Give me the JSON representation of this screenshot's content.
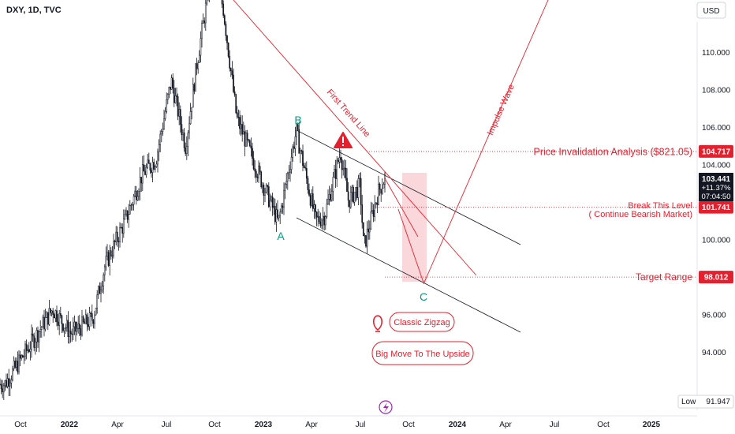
{
  "header": {
    "symbol_title": "DXY, 1D, TVC",
    "currency_button": "USD"
  },
  "chart_data": {
    "type": "candlestick",
    "title": "DXY, 1D, TVC",
    "ylim": [
      90.9,
      112.8
    ],
    "y_ticks": [
      "110.000",
      "108.000",
      "106.000",
      "104.000",
      "102.000",
      "100.000",
      "98.000",
      "96.000",
      "94.000"
    ],
    "x_ticks": [
      {
        "label": "Oct",
        "bold": false
      },
      {
        "label": "2022",
        "bold": true
      },
      {
        "label": "Apr",
        "bold": false
      },
      {
        "label": "Jul",
        "bold": false
      },
      {
        "label": "Oct",
        "bold": false
      },
      {
        "label": "2023",
        "bold": true
      },
      {
        "label": "Apr",
        "bold": false
      },
      {
        "label": "Jul",
        "bold": false
      },
      {
        "label": "Oct",
        "bold": false
      },
      {
        "label": "2024",
        "bold": true
      },
      {
        "label": "Apr",
        "bold": false
      },
      {
        "label": "Jul",
        "bold": false
      },
      {
        "label": "Oct",
        "bold": false
      },
      {
        "label": "2025",
        "bold": true
      }
    ],
    "price_path": [
      {
        "date": "2021-09-01",
        "value": 92.3
      },
      {
        "date": "2021-10-15",
        "value": 94.2
      },
      {
        "date": "2021-12-01",
        "value": 96.3
      },
      {
        "date": "2022-01-05",
        "value": 95.0
      },
      {
        "date": "2022-02-15",
        "value": 95.8
      },
      {
        "date": "2022-03-10",
        "value": 98.6
      },
      {
        "date": "2022-04-20",
        "value": 101.2
      },
      {
        "date": "2022-05-20",
        "value": 103.5
      },
      {
        "date": "2022-06-15",
        "value": 104.3
      },
      {
        "date": "2022-07-14",
        "value": 108.5
      },
      {
        "date": "2022-08-10",
        "value": 105.0
      },
      {
        "date": "2022-09-01",
        "value": 109.5
      },
      {
        "date": "2022-09-27",
        "value": 114.1
      },
      {
        "date": "2022-10-20",
        "value": 112.5
      },
      {
        "date": "2022-11-15",
        "value": 106.5
      },
      {
        "date": "2022-12-20",
        "value": 104.0
      },
      {
        "date": "2023-01-25",
        "value": 101.5
      },
      {
        "date": "2023-02-02",
        "value": 100.9
      },
      {
        "date": "2023-03-08",
        "value": 105.8
      },
      {
        "date": "2023-04-14",
        "value": 101.0
      },
      {
        "date": "2023-05-01",
        "value": 101.3
      },
      {
        "date": "2023-05-31",
        "value": 104.7
      },
      {
        "date": "2023-06-15",
        "value": 102.1
      },
      {
        "date": "2023-07-07",
        "value": 102.9
      },
      {
        "date": "2023-07-14",
        "value": 99.6
      },
      {
        "date": "2023-08-10",
        "value": 102.5
      },
      {
        "date": "2023-08-25",
        "value": 103.44
      }
    ],
    "last_price": {
      "value": "103.441",
      "change": "+11.37%",
      "countdown": "07:04:50"
    },
    "price_labels": [
      {
        "value": "104.717",
        "annotation": "Price Invalidation Analysis ($821.05)"
      },
      {
        "value": "101.741",
        "annotation": "Break This Level",
        "annotation2": "( Continue Bearish Market)"
      },
      {
        "value": "98.012",
        "annotation": "Target Range"
      }
    ],
    "wave_labels": [
      "A",
      "B",
      "C"
    ],
    "line_labels": {
      "trend_line": "First Trend Line",
      "impulse": "Impulse Wave"
    },
    "callouts": [
      "Classic Zigzag",
      "Big Move To The Upside"
    ],
    "low": {
      "label": "Low",
      "value": "91.947"
    },
    "colors": {
      "up": "#131722",
      "down": "#131722",
      "annotation": "#e5202e",
      "wave_label": "#089981",
      "target_box": "#f7c9ce"
    }
  },
  "icons": {
    "warning": "warning-icon",
    "idea": "lightbulb-icon",
    "event": "lightning-icon"
  }
}
